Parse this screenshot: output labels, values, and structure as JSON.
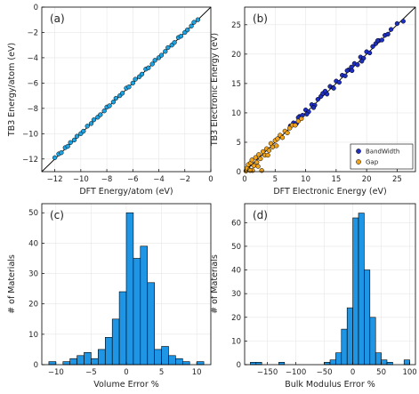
{
  "chart_data": [
    {
      "panel": "(a)",
      "type": "scatter",
      "xlabel": "DFT Energy/atom (eV)",
      "ylabel": "TB3 Energy/atom (eV)",
      "xlim": [
        -13,
        0
      ],
      "ylim": [
        -13,
        0
      ],
      "xticks": [
        -12,
        -10,
        -8,
        -6,
        -4,
        -2,
        0
      ],
      "yticks": [
        -12,
        -10,
        -8,
        -6,
        -4,
        -2,
        0
      ],
      "grid": true,
      "identity_line": true,
      "series": [
        {
          "color": "#1fa3e0",
          "x": [
            -12.0,
            -11.7,
            -11.5,
            -11.2,
            -11.0,
            -10.8,
            -10.5,
            -10.3,
            -10.0,
            -9.8,
            -9.5,
            -9.2,
            -9.0,
            -8.7,
            -8.5,
            -8.2,
            -8.0,
            -7.8,
            -7.5,
            -7.3,
            -7.0,
            -6.8,
            -6.5,
            -6.3,
            -6.0,
            -5.8,
            -5.5,
            -5.3,
            -5.0,
            -4.8,
            -4.5,
            -4.3,
            -4.0,
            -3.8,
            -3.5,
            -3.3,
            -3.0,
            -2.8,
            -2.5,
            -2.3,
            -2.0,
            -1.8,
            -1.5,
            -1.3,
            -1.0
          ],
          "y": [
            -11.9,
            -11.6,
            -11.5,
            -11.1,
            -11.0,
            -10.7,
            -10.5,
            -10.2,
            -10.0,
            -9.8,
            -9.4,
            -9.2,
            -8.9,
            -8.7,
            -8.5,
            -8.2,
            -7.9,
            -7.8,
            -7.5,
            -7.2,
            -7.0,
            -6.8,
            -6.4,
            -6.3,
            -6.0,
            -5.7,
            -5.5,
            -5.3,
            -4.9,
            -4.8,
            -4.5,
            -4.2,
            -4.0,
            -3.8,
            -3.5,
            -3.2,
            -3.0,
            -2.8,
            -2.4,
            -2.3,
            -2.0,
            -1.8,
            -1.5,
            -1.2,
            -1.0
          ]
        }
      ]
    },
    {
      "panel": "(b)",
      "type": "scatter",
      "xlabel": "DFT Electronic Energy (eV)",
      "ylabel": "TB3 Electronic Energy (eV)",
      "xlim": [
        0,
        28
      ],
      "ylim": [
        0,
        28
      ],
      "xticks": [
        0,
        5,
        10,
        15,
        20,
        25
      ],
      "yticks": [
        0,
        5,
        10,
        15,
        20,
        25
      ],
      "grid": true,
      "identity_line": true,
      "legend_position": "bottom-right",
      "series": [
        {
          "name": "BandWidth",
          "color": "#1f2fbf",
          "x": [
            7.5,
            8.0,
            8.5,
            9.0,
            9.5,
            10.0,
            10.5,
            11.0,
            11.5,
            12.0,
            12.5,
            13.0,
            13.5,
            14.0,
            14.5,
            15.0,
            15.5,
            16.0,
            16.5,
            17.0,
            17.5,
            18.0,
            18.5,
            19.0,
            19.5,
            20.0,
            20.5,
            21.0,
            21.5,
            22.0,
            22.5,
            23.0,
            23.5,
            24.0,
            25.0,
            26.0,
            10.2,
            12.8,
            14.6,
            16.8,
            19.2,
            21.8,
            8.8,
            11.3,
            13.2,
            17.6
          ],
          "y": [
            7.8,
            8.3,
            8.2,
            9.4,
            9.6,
            10.5,
            10.2,
            11.4,
            11.3,
            12.3,
            12.8,
            13.4,
            13.2,
            14.5,
            14.3,
            15.4,
            15.2,
            16.4,
            16.3,
            17.3,
            17.8,
            18.4,
            18.2,
            19.5,
            19.3,
            20.4,
            20.2,
            21.3,
            21.8,
            22.3,
            22.4,
            23.2,
            23.4,
            24.2,
            25.2,
            25.6,
            9.8,
            13.3,
            14.2,
            17.2,
            18.8,
            22.3,
            9.2,
            10.9,
            13.7,
            17.2
          ]
        },
        {
          "name": "Gap",
          "color": "#f0a31a",
          "x": [
            0.2,
            0.4,
            0.6,
            0.8,
            1.0,
            1.2,
            1.5,
            1.8,
            2.0,
            2.3,
            2.6,
            3.0,
            3.3,
            3.6,
            4.0,
            4.3,
            4.6,
            5.0,
            5.4,
            5.8,
            6.2,
            6.6,
            7.0,
            7.4,
            7.8,
            8.3,
            8.8,
            9.3,
            1.3,
            2.8,
            0.9,
            3.8,
            5.2,
            2.2
          ],
          "y": [
            0.1,
            0.6,
            1.2,
            0.3,
            1.5,
            2.0,
            1.0,
            2.4,
            1.6,
            2.9,
            2.2,
            3.4,
            2.8,
            3.9,
            3.6,
            4.8,
            4.2,
            5.3,
            5.6,
            6.2,
            5.8,
            6.9,
            6.6,
            7.4,
            7.9,
            7.9,
            8.6,
            9.0,
            0.2,
            0.2,
            0.2,
            2.8,
            4.4,
            0.9
          ]
        }
      ]
    },
    {
      "panel": "(c)",
      "type": "bar",
      "xlabel": "Volume Error %",
      "ylabel": "# of Materials",
      "xlim": [
        -12,
        12
      ],
      "ylim": [
        0,
        53
      ],
      "xticks": [
        -10,
        -5,
        0,
        5,
        10
      ],
      "yticks": [
        0,
        10,
        20,
        30,
        40,
        50
      ],
      "grid": true,
      "bar_color": "#1f95e6",
      "bin_width": 1,
      "bin_starts": [
        -11,
        -10,
        -9,
        -8,
        -7,
        -6,
        -5,
        -4,
        -3,
        -2,
        -1,
        0,
        1,
        2,
        3,
        4,
        5,
        6,
        7,
        8,
        9,
        10
      ],
      "values": [
        1,
        0,
        1,
        2,
        3,
        4,
        2,
        5,
        9,
        15,
        24,
        50,
        35,
        39,
        27,
        5,
        6,
        3,
        2,
        1,
        0,
        1
      ]
    },
    {
      "panel": "(d)",
      "type": "bar",
      "xlabel": "Bulk Modulus Error %",
      "ylabel": "# of Materials",
      "xlim": [
        -190,
        110
      ],
      "ylim": [
        0,
        68
      ],
      "xticks": [
        -150,
        -100,
        -50,
        0,
        50,
        100
      ],
      "yticks": [
        0,
        10,
        20,
        30,
        40,
        50,
        60
      ],
      "grid": true,
      "bar_color": "#1f95e6",
      "bin_width": 10,
      "bin_starts": [
        -180,
        -170,
        -160,
        -150,
        -140,
        -130,
        -120,
        -110,
        -100,
        -90,
        -80,
        -70,
        -60,
        -50,
        -40,
        -30,
        -20,
        -10,
        0,
        10,
        20,
        30,
        40,
        50,
        60,
        70,
        80,
        90
      ],
      "values": [
        1,
        1,
        0,
        0,
        0,
        1,
        0,
        0,
        0,
        0,
        0,
        0,
        0,
        1,
        2,
        5,
        15,
        24,
        62,
        64,
        40,
        20,
        5,
        2,
        1,
        0,
        0,
        2
      ]
    }
  ]
}
